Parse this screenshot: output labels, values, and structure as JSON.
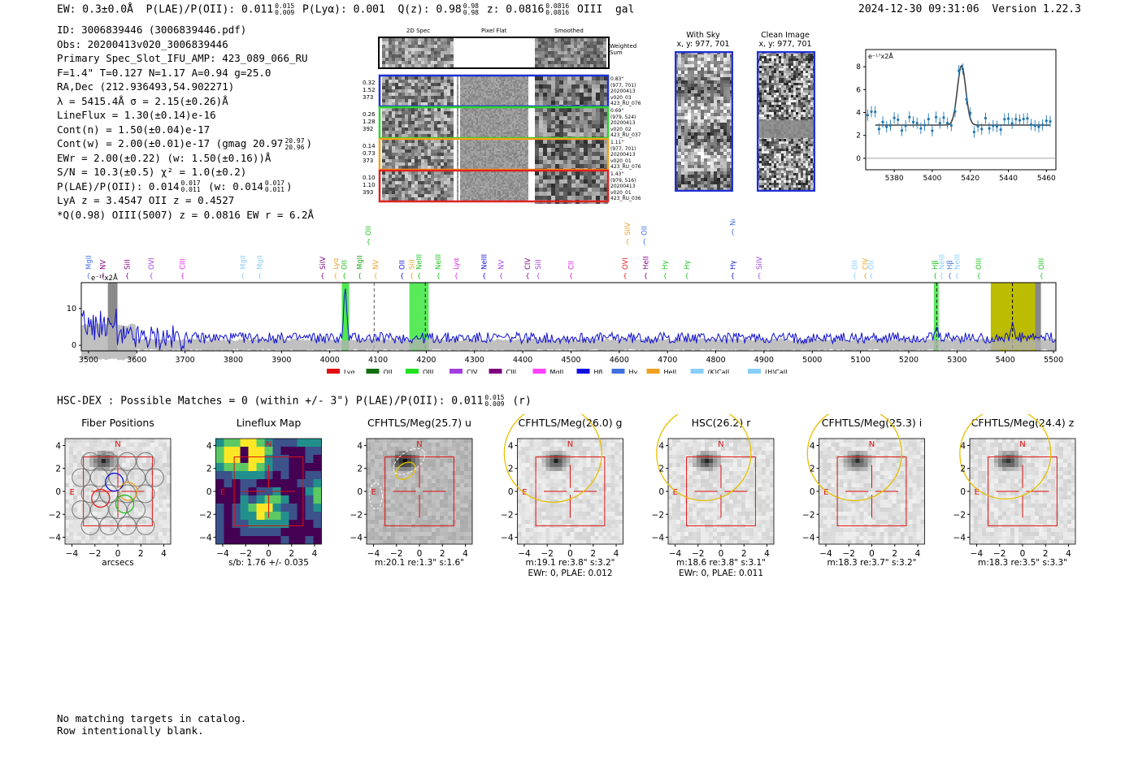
{
  "header": {
    "ew": "EW: 0.3±0.0Å",
    "plae_label": "P(LAE)/P(OII): 0.011",
    "plae_hi": "0.015",
    "plae_lo": "0.009",
    "plya": "P(Lyα): 0.001",
    "qz_label": "Q(z): 0.98",
    "qz_hi": "0.98",
    "qz_lo": "0.98",
    "z_label": "z: 0.0816",
    "z_hi": "0.0816",
    "z_lo": "0.0816",
    "line_name": "OIII",
    "gal": "gal",
    "timestamp": "2024-12-30 09:31:06",
    "version": "Version 1.22.3"
  },
  "info": {
    "id": "ID: 3006839446 (3006839446.pdf)",
    "obs": "Obs: 20200413v020_3006839446",
    "slot": "Primary Spec_Slot_IFU_AMP: 423_089_066_RU",
    "params": "F=1.4\"  T=0.127  N=1.17  A=0.94  g=25.0",
    "radec": "RA,Dec (212.936493,54.902271)",
    "lambda": "λ = 5415.4Å   σ = 2.15(±0.26)Å",
    "lineflux": "LineFlux = 1.30(±0.14)e-16",
    "contn": "Cont(n) = 1.50(±0.04)e-17",
    "contw": "Cont(w) = 2.00(±0.01)e-17 (gmag 20.97",
    "contw_hi": "20.97",
    "contw_lo": "20.96",
    "ewr": "EWr = 2.00(±0.22) (w: 1.50(±0.16))Å",
    "sn": "S/N = 10.3(±0.5)  χ² = 1.0(±0.2)",
    "plae": "P(LAE)/P(OII): 0.014",
    "plae_hi": "0.017",
    "plae_lo": "0.011",
    "plae_w": "(w: 0.014",
    "plae_w_hi": "0.017",
    "plae_w_lo": "0.011",
    "lya_z": "LyA z = 3.4547   OII z = 0.4527",
    "q_line": "*Q(0.98) OIII(5007) z = 0.0816  EW r = 6.2Å"
  },
  "spec2d": {
    "col_titles": [
      "2D Spec",
      "Pixel Flat",
      "Smoothed"
    ],
    "weighted_sum": "Weighted Sum",
    "rows": [
      {
        "left": [
          "0.32",
          "1.52",
          "373"
        ],
        "right": [
          "0.83\"",
          "(977, 701)",
          "20200413",
          "v020_03",
          "423_RU_076"
        ],
        "color": "#1f2fd6"
      },
      {
        "left": [
          "0.26",
          "1.28",
          "392"
        ],
        "right": [
          "0.69\"",
          "(979, 524)",
          "20200413",
          "v020_02",
          "423_RU_037"
        ],
        "color": "#2ad62a"
      },
      {
        "left": [
          "0.14",
          "0.73",
          "373"
        ],
        "right": [
          "1.11\"",
          "(977, 701)",
          "20200413",
          "v020_01",
          "423_RU_076"
        ],
        "color": "#f0a020"
      },
      {
        "left": [
          "0.10",
          "1.10",
          "393"
        ],
        "right": [
          "1.43\"",
          "(979, 516)",
          "20200413",
          "v020_01",
          "423_RU_036"
        ],
        "color": "#e02020"
      }
    ]
  },
  "cutouts": {
    "with_sky": "With Sky",
    "with_sky_xy": "x, y: 977, 701",
    "clean": "Clean Image",
    "clean_xy": "x, y: 977, 701"
  },
  "zoom_plot": {
    "ylabel": "e⁻¹⁷x2Å",
    "xticks": [
      "5380",
      "5400",
      "5420",
      "5440",
      "5460"
    ],
    "yticks": [
      "0",
      "2",
      "4",
      "6",
      "8"
    ]
  },
  "spectrum": {
    "ylabel": "e⁻¹⁷x2Å",
    "xticks": [
      "3500",
      "3600",
      "3700",
      "3800",
      "3900",
      "4000",
      "4100",
      "4200",
      "4300",
      "4400",
      "4500",
      "4600",
      "4700",
      "4800",
      "4900",
      "5000",
      "5100",
      "5200",
      "5300",
      "5400",
      "5500"
    ],
    "yticks": [
      "0",
      "10"
    ],
    "lines": [
      {
        "name": "MgII",
        "x": 3500,
        "c": "#4070e0",
        "row": 0
      },
      {
        "name": "NV",
        "x": 3530,
        "c": "#800080",
        "row": 0
      },
      {
        "name": "SiII",
        "x": 3580,
        "c": "#800080",
        "row": 0
      },
      {
        "name": "OVI",
        "x": 3630,
        "c": "#a040e0",
        "row": 0
      },
      {
        "name": "CIII",
        "x": 3695,
        "c": "#e020e0",
        "row": 0
      },
      {
        "name": "MgII",
        "x": 3820,
        "c": "#87cefa",
        "row": 0
      },
      {
        "name": "MgII",
        "x": 3855,
        "c": "#87cefa",
        "row": 0
      },
      {
        "name": "SiIV",
        "x": 3985,
        "c": "#800080",
        "row": 0
      },
      {
        "name": "Lyα",
        "x": 4012,
        "c": "#f0a020",
        "row": 0
      },
      {
        "name": "OII",
        "x": 4030,
        "c": "#20c020",
        "row": 0
      },
      {
        "name": "MgII",
        "x": 4062,
        "c": "#20a020",
        "row": 0
      },
      {
        "name": "NV",
        "x": 4095,
        "c": "#f0a020",
        "row": 0
      },
      {
        "name": "OII",
        "x": 4150,
        "c": "#1010e0",
        "row": 0
      },
      {
        "name": "SiII",
        "x": 4170,
        "c": "#f0a020",
        "row": 0
      },
      {
        "name": "NeIII",
        "x": 4185,
        "c": "#20c020",
        "row": 0
      },
      {
        "name": "NeIII",
        "x": 4225,
        "c": "#20c020",
        "row": 0
      },
      {
        "name": "Lyα",
        "x": 4262,
        "c": "#e020e0",
        "row": 0
      },
      {
        "name": "NeIII",
        "x": 4320,
        "c": "#1010e0",
        "row": 0
      },
      {
        "name": "NV",
        "x": 4355,
        "c": "#a040e0",
        "row": 0
      },
      {
        "name": "CIV",
        "x": 4410,
        "c": "#800080",
        "row": 0
      },
      {
        "name": "SiII",
        "x": 4432,
        "c": "#a040e0",
        "row": 0
      },
      {
        "name": "CII",
        "x": 4500,
        "c": "#e020e0",
        "row": 0
      },
      {
        "name": "OVI",
        "x": 4612,
        "c": "#e02020",
        "row": 0
      },
      {
        "name": "HeII",
        "x": 4655,
        "c": "#800080",
        "row": 0
      },
      {
        "name": "Hγ",
        "x": 4695,
        "c": "#20c020",
        "row": 0
      },
      {
        "name": "Hγ",
        "x": 4740,
        "c": "#20c020",
        "row": 0
      },
      {
        "name": "Hγ",
        "x": 4835,
        "c": "#1010e0",
        "row": 0
      },
      {
        "name": "SiIV",
        "x": 4890,
        "c": "#a040e0",
        "row": 0
      },
      {
        "name": "OII",
        "x": 5088,
        "c": "#87cefa",
        "row": 0
      },
      {
        "name": "CIV",
        "x": 5110,
        "c": "#f0a020",
        "row": 0
      },
      {
        "name": "OII",
        "x": 5122,
        "c": "#87cefa",
        "row": 0
      },
      {
        "name": "Hβ",
        "x": 5255,
        "c": "#20c020",
        "row": 0
      },
      {
        "name": "NeIII",
        "x": 5268,
        "c": "#87cefa",
        "row": 0
      },
      {
        "name": "Hβ",
        "x": 5285,
        "c": "#4070e0",
        "row": 0
      },
      {
        "name": "NeIII",
        "x": 5300,
        "c": "#87cefa",
        "row": 0
      },
      {
        "name": "OIII",
        "x": 5345,
        "c": "#20c020",
        "row": 0
      },
      {
        "name": "OIII",
        "x": 5475,
        "c": "#20c020",
        "row": 0
      },
      {
        "name": "OII",
        "x": 4080,
        "c": "#20c020",
        "row": 1
      },
      {
        "name": "SiIV",
        "x": 4617,
        "c": "#f0a020",
        "row": 1
      },
      {
        "name": "OII",
        "x": 4652,
        "c": "#4070e0",
        "row": 1
      },
      {
        "name": "NeIII",
        "x": 4835,
        "c": "#4070e0",
        "row": 2
      }
    ],
    "legend": [
      {
        "name": "Lyα",
        "c": "#e01010"
      },
      {
        "name": "OII",
        "c": "#107010"
      },
      {
        "name": "OIII",
        "c": "#20e020"
      },
      {
        "name": "CIV",
        "c": "#a040e0"
      },
      {
        "name": "CIII",
        "c": "#800080"
      },
      {
        "name": "MgII",
        "c": "#ff40ff"
      },
      {
        "name": "Hβ",
        "c": "#1010e0"
      },
      {
        "name": "Hγ",
        "c": "#4070e0"
      },
      {
        "name": "HeII",
        "c": "#f0a020"
      },
      {
        "name": "(K)CaII",
        "c": "#87cefa"
      },
      {
        "name": "(H)CaII",
        "c": "#87cefa"
      }
    ]
  },
  "hsc": {
    "title": "HSC-DEX : Possible Matches = 0 (within +/- 3\")  P(LAE)/P(OII): 0.011",
    "hi": "0.015",
    "lo": "0.009",
    "suffix": "(r)"
  },
  "panels": [
    {
      "title": "Fiber Positions",
      "l1": "arcsecs",
      "l2": ""
    },
    {
      "title": "Lineflux Map",
      "l1": "s/b: 1.76 +/- 0.035",
      "l2": ""
    },
    {
      "title": "CFHTLS/Meg(25.7) u",
      "l1": "m:20.1  re:1.3\"  s:1.6\"",
      "l2": ""
    },
    {
      "title": "CFHTLS/Meg(26.0) g",
      "l1": "m:19.1  re:3.8\"  s:3.2\"",
      "l2": "EWr: 0, PLAE: 0.012"
    },
    {
      "title": "HSC(26.2) r",
      "l1": "m:18.6  re:3.8\"  s:3.1\"",
      "l2": "EWr: 0, PLAE: 0.011"
    },
    {
      "title": "CFHTLS/Meg(25.3) i",
      "l1": "m:18.3  re:3.7\"  s:3.2\"",
      "l2": ""
    },
    {
      "title": "CFHTLS/Meg(24.4) z",
      "l1": "m:18.3  re:3.5\"  s:3.3\"",
      "l2": ""
    }
  ],
  "panel_axis": {
    "yticks": [
      "4",
      "2",
      "0",
      "−2",
      "−4"
    ],
    "xticks": [
      "−4",
      "−2",
      "0",
      "2",
      "4"
    ],
    "n": "N",
    "e": "E"
  },
  "footer": {
    "l1": "No matching targets in catalog.",
    "l2": "Row intentionally blank."
  }
}
